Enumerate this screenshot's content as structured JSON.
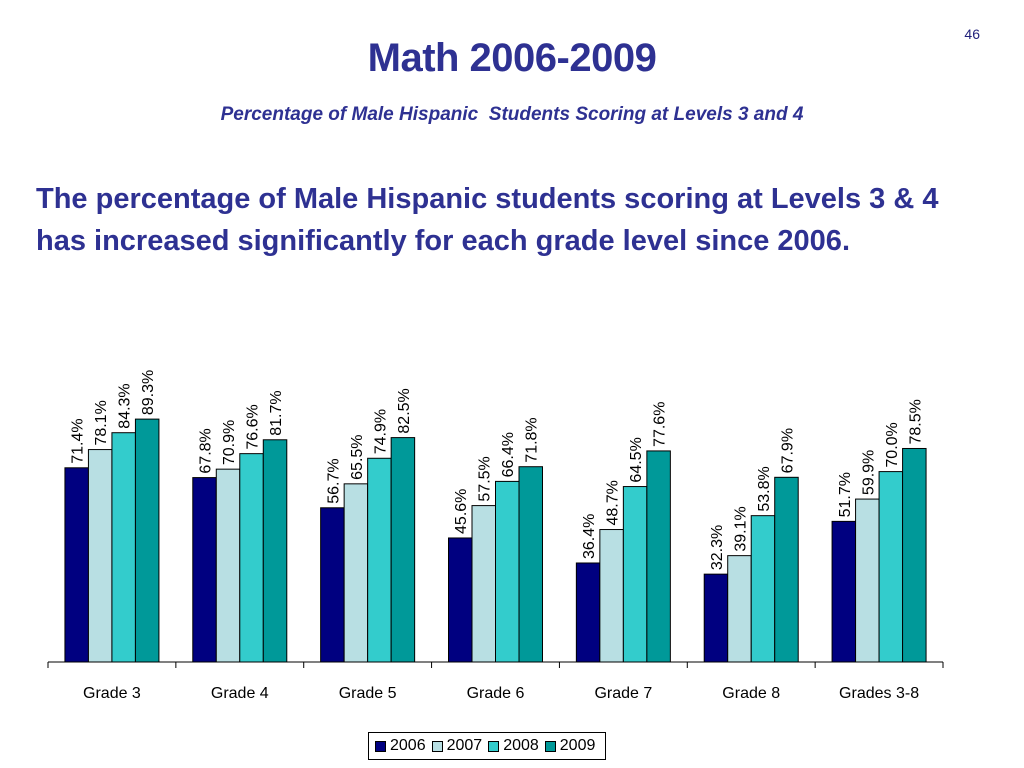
{
  "page_number": "46",
  "title": "Math 2006-2009",
  "subtitle": "Percentage of Male Hispanic  Students Scoring at Levels 3 and 4",
  "body_text": "The percentage of Male Hispanic students scoring at Levels 3 & 4 has increased significantly for each grade level since 2006.",
  "chart_data": {
    "type": "bar",
    "categories": [
      "Grade 3",
      "Grade 4",
      "Grade 5",
      "Grade 6",
      "Grade 7",
      "Grade 8",
      "Grades 3-8"
    ],
    "series": [
      {
        "name": "2006",
        "color": "#000080",
        "values": [
          71.4,
          67.8,
          56.7,
          45.6,
          36.4,
          32.3,
          51.7
        ],
        "labels": [
          "71.4%",
          "67.8%",
          "56.7%",
          "45.6%",
          "36.4%",
          "32.3%",
          "51.7%"
        ]
      },
      {
        "name": "2007",
        "color": "#b8dfe3",
        "values": [
          78.1,
          70.9,
          65.5,
          57.5,
          48.7,
          39.1,
          59.9
        ],
        "labels": [
          "78.1%",
          "70.9%",
          "65.5%",
          "57.5%",
          "48.7%",
          "39.1%",
          "59.9%"
        ]
      },
      {
        "name": "2008",
        "color": "#33cccc",
        "values": [
          84.3,
          76.6,
          74.9,
          66.4,
          64.5,
          53.8,
          70.0
        ],
        "labels": [
          "84.3%",
          "76.6%",
          "74.9%",
          "66.4%",
          "64.5%",
          "53.8%",
          "70.0%"
        ]
      },
      {
        "name": "2009",
        "color": "#009999",
        "values": [
          89.3,
          81.7,
          82.5,
          71.8,
          77.6,
          67.9,
          78.5
        ],
        "labels": [
          "89.3%",
          "81.7%",
          "82.5%",
          "71.8%",
          "77.6%",
          "67.9%",
          "78.5%"
        ]
      }
    ],
    "ylim": [
      0,
      100
    ],
    "grid": false,
    "legend_position": "bottom"
  }
}
